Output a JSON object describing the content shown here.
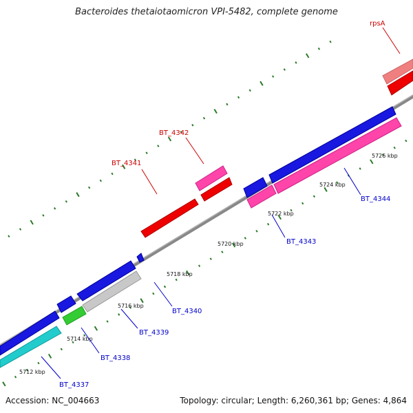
{
  "title": "Bacteroides thetaiotaomicron VPI-5482, complete genome",
  "accession": "Accession: NC_004663",
  "summary": "Topology: circular; Length: 6,260,361 bp; Genes: 4,864",
  "colors": {
    "backbone": "#888888",
    "tick": "#2a7a2a",
    "forward_label": "#cc0000",
    "reverse_label": "#0000cc"
  },
  "scale": {
    "unit": "kbp",
    "ticks": [
      {
        "label": "5712 kbp",
        "kbp": 5712
      },
      {
        "label": "5714 kbp",
        "kbp": 5714
      },
      {
        "label": "5716 kbp",
        "kbp": 5716
      },
      {
        "label": "5718 kbp",
        "kbp": 5718
      },
      {
        "label": "5720 kbp",
        "kbp": 5720
      },
      {
        "label": "5722 kbp",
        "kbp": 5722
      },
      {
        "label": "5724 kbp",
        "kbp": 5724
      },
      {
        "label": "5726 kbp",
        "kbp": 5726
      }
    ]
  },
  "genes": [
    {
      "id": "BT_4337",
      "strand": "reverse",
      "color": "#0000ee",
      "label": "BT_4337"
    },
    {
      "id": "BT_4338",
      "strand": "reverse",
      "color": "#0000ee",
      "label": "BT_4338"
    },
    {
      "id": "BT_4339",
      "strand": "reverse",
      "color": "#0000ee",
      "label": "BT_4339"
    },
    {
      "id": "BT_4340",
      "strand": "reverse",
      "color": "#0000ee",
      "label": "BT_4340"
    },
    {
      "id": "BT_4341",
      "strand": "forward",
      "color": "#ee0000",
      "label": "BT_4341"
    },
    {
      "id": "BT_4342",
      "strand": "forward",
      "color": "#ee0000",
      "label": "BT_4342"
    },
    {
      "id": "BT_4343",
      "strand": "reverse",
      "color": "#0000ee",
      "label": "BT_4343"
    },
    {
      "id": "BT_4344",
      "strand": "reverse",
      "color": "#0000ee",
      "label": "BT_4344"
    },
    {
      "id": "rpsA",
      "strand": "forward",
      "color": "#ee0000",
      "label": "rpsA"
    }
  ]
}
